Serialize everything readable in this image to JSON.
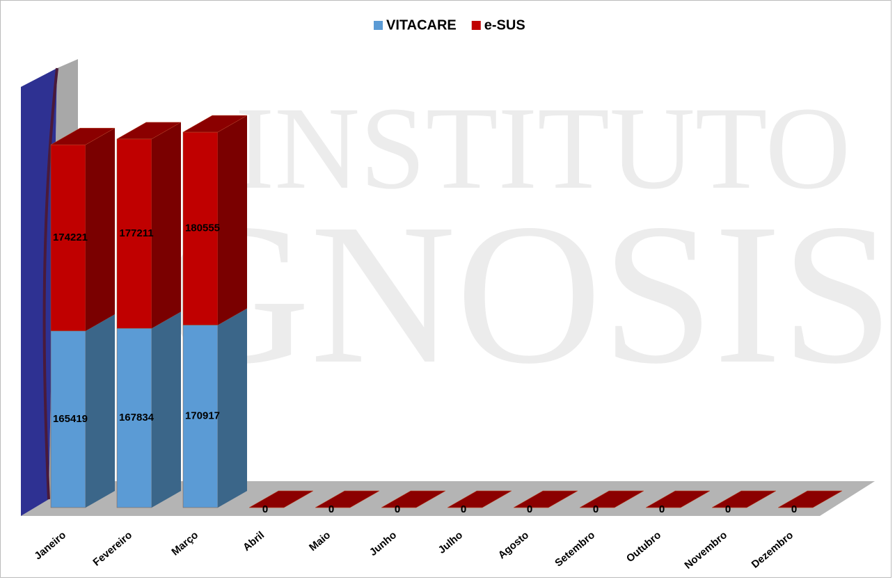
{
  "chart_data": {
    "type": "bar3d_stacked",
    "watermark": [
      "INSTITUTO",
      "GNOSIS"
    ],
    "categories": [
      "Janeiro",
      "Fevereiro",
      "Março",
      "Abril",
      "Maio",
      "Junho",
      "Julho",
      "Agosto",
      "Setembro",
      "Outubro",
      "Novembro",
      "Dezembro"
    ],
    "series": [
      {
        "name": "VITACARE",
        "color": "#5b9bd5",
        "side_color": "#3b6689",
        "values": [
          165419,
          167834,
          170917,
          0,
          0,
          0,
          0,
          0,
          0,
          0,
          0,
          0
        ]
      },
      {
        "name": "e-SUS",
        "color": "#c00000",
        "side_color": "#7a0000",
        "values": [
          174221,
          177211,
          180555,
          0,
          0,
          0,
          0,
          0,
          0,
          0,
          0,
          0
        ]
      }
    ],
    "legend": "top"
  }
}
